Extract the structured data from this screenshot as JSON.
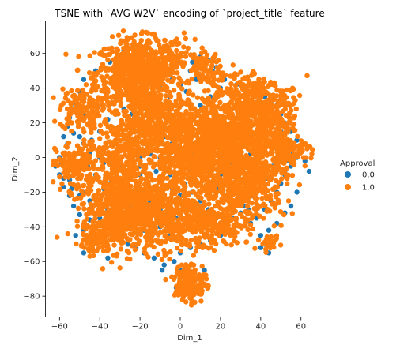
{
  "chart_data": {
    "type": "scatter",
    "title": "TSNE with `AVG W2V` encoding of `project_title` feature",
    "xlabel": "Dim_1",
    "ylabel": "Dim_2",
    "xlim": [
      -67,
      77
    ],
    "ylim": [
      -92,
      79
    ],
    "x_ticks": [
      -60,
      -40,
      -20,
      0,
      20,
      40,
      60
    ],
    "y_ticks": [
      -80,
      -60,
      -40,
      -20,
      0,
      20,
      40,
      60
    ],
    "x_tick_labels": [
      "−60",
      "−40",
      "−20",
      "0",
      "20",
      "40",
      "60"
    ],
    "y_tick_labels": [
      "−80",
      "−60",
      "−40",
      "−20",
      "0",
      "20",
      "40",
      "60"
    ],
    "grid": false,
    "legend_title": "Approval",
    "legend_placement": "right",
    "series": [
      {
        "name": "0.0",
        "color": "#1f77b4",
        "points": [
          [
            -2,
            -35
          ],
          [
            -10,
            -30
          ],
          [
            -5,
            -45
          ],
          [
            -9,
            -65
          ],
          [
            -36,
            -58
          ],
          [
            -48,
            -42
          ],
          [
            -47,
            -20
          ],
          [
            -56,
            -8
          ],
          [
            -50,
            12
          ],
          [
            -45,
            20
          ],
          [
            -55,
            -13
          ],
          [
            -25,
            -28
          ],
          [
            -45,
            -25
          ],
          [
            -18,
            -35
          ],
          [
            -28,
            -45
          ],
          [
            -15,
            -25
          ],
          [
            -35,
            -15
          ],
          [
            -20,
            -10
          ],
          [
            -5,
            -10
          ],
          [
            0,
            -5
          ],
          [
            5,
            -8
          ],
          [
            8,
            -15
          ],
          [
            2,
            -15
          ],
          [
            5,
            -3
          ],
          [
            10,
            -10
          ],
          [
            5,
            -12
          ],
          [
            -5,
            -15
          ],
          [
            -8,
            -5
          ],
          [
            -12,
            -8
          ],
          [
            -15,
            -3
          ],
          [
            -20,
            -5
          ],
          [
            -25,
            -8
          ],
          [
            -30,
            -12
          ],
          [
            -35,
            -10
          ],
          [
            -38,
            -3
          ],
          [
            -32,
            2
          ],
          [
            -25,
            5
          ],
          [
            -18,
            8
          ],
          [
            -10,
            10
          ],
          [
            -5,
            15
          ],
          [
            0,
            20
          ],
          [
            5,
            25
          ],
          [
            10,
            30
          ],
          [
            15,
            35
          ],
          [
            8,
            45
          ],
          [
            5,
            50
          ],
          [
            0,
            55
          ],
          [
            -5,
            60
          ],
          [
            -12,
            60
          ],
          [
            -20,
            62
          ],
          [
            -28,
            62
          ],
          [
            -35,
            55
          ],
          [
            -42,
            50
          ],
          [
            -48,
            45
          ],
          [
            -50,
            38
          ],
          [
            -52,
            30
          ],
          [
            -48,
            25
          ],
          [
            -55,
            23
          ],
          [
            -40,
            30
          ],
          [
            -32,
            35
          ],
          [
            -25,
            40
          ],
          [
            -18,
            42
          ],
          [
            -10,
            40
          ],
          [
            -5,
            35
          ],
          [
            0,
            30
          ],
          [
            3,
            38
          ],
          [
            8,
            50
          ],
          [
            12,
            55
          ],
          [
            18,
            52
          ],
          [
            22,
            45
          ],
          [
            28,
            42
          ],
          [
            32,
            40
          ],
          [
            38,
            38
          ],
          [
            42,
            35
          ],
          [
            45,
            32
          ],
          [
            48,
            30
          ],
          [
            50,
            25
          ],
          [
            52,
            20
          ],
          [
            55,
            15
          ],
          [
            58,
            10
          ],
          [
            60,
            5
          ],
          [
            58,
            0
          ],
          [
            55,
            -5
          ],
          [
            52,
            -10
          ],
          [
            50,
            -15
          ],
          [
            48,
            -20
          ],
          [
            45,
            -25
          ],
          [
            42,
            -30
          ],
          [
            38,
            -35
          ],
          [
            35,
            -38
          ],
          [
            30,
            -40
          ],
          [
            25,
            -42
          ],
          [
            20,
            -45
          ],
          [
            15,
            -48
          ],
          [
            10,
            -50
          ],
          [
            5,
            -52
          ],
          [
            0,
            -55
          ],
          [
            -3,
            -60
          ],
          [
            -8,
            -62
          ],
          [
            -13,
            -58
          ],
          [
            -18,
            -55
          ],
          [
            -22,
            -52
          ],
          [
            -26,
            -50
          ],
          [
            -30,
            -48
          ],
          [
            -34,
            -45
          ],
          [
            -38,
            -42
          ],
          [
            -42,
            -40
          ],
          [
            -45,
            -36
          ],
          [
            -50,
            -33
          ],
          [
            -53,
            -28
          ],
          [
            -55,
            -22
          ],
          [
            -58,
            -17
          ],
          [
            -60,
            -10
          ],
          [
            -59,
            -3
          ],
          [
            -58,
            2
          ],
          [
            -56,
            8
          ],
          [
            -53,
            14
          ],
          [
            -50,
            5
          ],
          [
            -45,
            2
          ],
          [
            -40,
            0
          ],
          [
            -35,
            -2
          ],
          [
            -30,
            -5
          ],
          [
            -25,
            -2
          ],
          [
            -20,
            0
          ],
          [
            -15,
            2
          ],
          [
            -10,
            0
          ],
          [
            -5,
            -2
          ],
          [
            0,
            0
          ],
          [
            5,
            2
          ],
          [
            10,
            5
          ],
          [
            15,
            8
          ],
          [
            20,
            10
          ],
          [
            25,
            12
          ],
          [
            30,
            15
          ],
          [
            35,
            18
          ],
          [
            40,
            20
          ],
          [
            45,
            18
          ],
          [
            48,
            12
          ],
          [
            45,
            8
          ],
          [
            40,
            5
          ],
          [
            35,
            2
          ],
          [
            30,
            0
          ],
          [
            25,
            -3
          ],
          [
            20,
            -5
          ],
          [
            15,
            -8
          ],
          [
            12,
            -12
          ],
          [
            18,
            -18
          ],
          [
            22,
            -22
          ],
          [
            28,
            -25
          ],
          [
            32,
            -28
          ],
          [
            36,
            -22
          ],
          [
            40,
            -18
          ],
          [
            43,
            -12
          ],
          [
            46,
            -5
          ],
          [
            48,
            0
          ],
          [
            42,
            -8
          ],
          [
            38,
            -12
          ],
          [
            34,
            -15
          ],
          [
            28,
            -18
          ],
          [
            24,
            -15
          ],
          [
            20,
            -10
          ],
          [
            16,
            -5
          ],
          [
            12,
            0
          ],
          [
            8,
            8
          ],
          [
            4,
            12
          ],
          [
            0,
            10
          ],
          [
            -4,
            8
          ],
          [
            -8,
            12
          ],
          [
            -12,
            15
          ],
          [
            -16,
            18
          ],
          [
            -20,
            22
          ],
          [
            -24,
            25
          ],
          [
            -28,
            28
          ],
          [
            -32,
            25
          ],
          [
            -36,
            22
          ],
          [
            -40,
            15
          ],
          [
            -44,
            10
          ],
          [
            -48,
            8
          ],
          [
            -52,
            2
          ],
          [
            -46,
            -5
          ],
          [
            -42,
            -10
          ],
          [
            -38,
            -18
          ],
          [
            -34,
            -22
          ],
          [
            -30,
            -28
          ],
          [
            -26,
            -32
          ],
          [
            -22,
            -38
          ],
          [
            -18,
            -42
          ],
          [
            -14,
            -45
          ],
          [
            -10,
            -40
          ],
          [
            -6,
            -35
          ],
          [
            -2,
            -30
          ],
          [
            2,
            -25
          ],
          [
            6,
            -20
          ],
          [
            10,
            -25
          ],
          [
            14,
            -30
          ],
          [
            18,
            -35
          ],
          [
            22,
            -38
          ],
          [
            26,
            -35
          ],
          [
            30,
            -32
          ],
          [
            34,
            -30
          ],
          [
            6,
            -68
          ],
          [
            2,
            -72
          ],
          [
            10,
            -75
          ],
          [
            4,
            -78
          ],
          [
            -2,
            -75
          ],
          [
            8,
            -70
          ],
          [
            12,
            -65
          ],
          [
            0,
            -65
          ],
          [
            42,
            -50
          ],
          [
            44,
            -55
          ],
          [
            40,
            -52
          ],
          [
            -48,
            -55
          ],
          [
            -52,
            -45
          ],
          [
            -44,
            -50
          ],
          [
            -40,
            -35
          ],
          [
            -36,
            -30
          ],
          [
            -56,
            18
          ],
          [
            -58,
            12
          ],
          [
            -60,
            0
          ],
          [
            -62,
            -5
          ],
          [
            -58,
            -12
          ],
          [
            -54,
            -18
          ],
          [
            -50,
            -22
          ],
          [
            -44,
            -28
          ],
          [
            -28,
            55
          ],
          [
            -24,
            50
          ],
          [
            -20,
            55
          ],
          [
            -16,
            50
          ],
          [
            -12,
            52
          ],
          [
            -8,
            48
          ],
          [
            -4,
            45
          ],
          [
            0,
            42
          ],
          [
            6,
            55
          ],
          [
            10,
            58
          ],
          [
            14,
            56
          ],
          [
            16,
            50
          ],
          [
            20,
            40
          ],
          [
            24,
            38
          ],
          [
            30,
            35
          ],
          [
            36,
            32
          ],
          [
            40,
            28
          ],
          [
            44,
            25
          ],
          [
            46,
            20
          ],
          [
            50,
            15
          ],
          [
            54,
            8
          ],
          [
            56,
            2
          ],
          [
            54,
            -2
          ],
          [
            52,
            -8
          ],
          [
            -26,
            12
          ],
          [
            -22,
            15
          ],
          [
            -18,
            18
          ],
          [
            -14,
            22
          ],
          [
            -10,
            25
          ],
          [
            -6,
            28
          ],
          [
            -2,
            25
          ],
          [
            2,
            22
          ],
          [
            62,
            -2
          ],
          [
            64,
            -8
          ],
          [
            58,
            -20
          ],
          [
            55,
            -28
          ],
          [
            52,
            -32
          ],
          [
            48,
            -38
          ],
          [
            44,
            -42
          ],
          [
            40,
            -45
          ],
          [
            -20,
            -18
          ],
          [
            -16,
            -22
          ],
          [
            -12,
            -18
          ],
          [
            -8,
            -22
          ],
          [
            -4,
            -18
          ],
          [
            0,
            -22
          ],
          [
            4,
            -28
          ],
          [
            8,
            -32
          ]
        ]
      },
      {
        "name": "1.0",
        "color": "#ff7f0e"
      }
    ]
  }
}
